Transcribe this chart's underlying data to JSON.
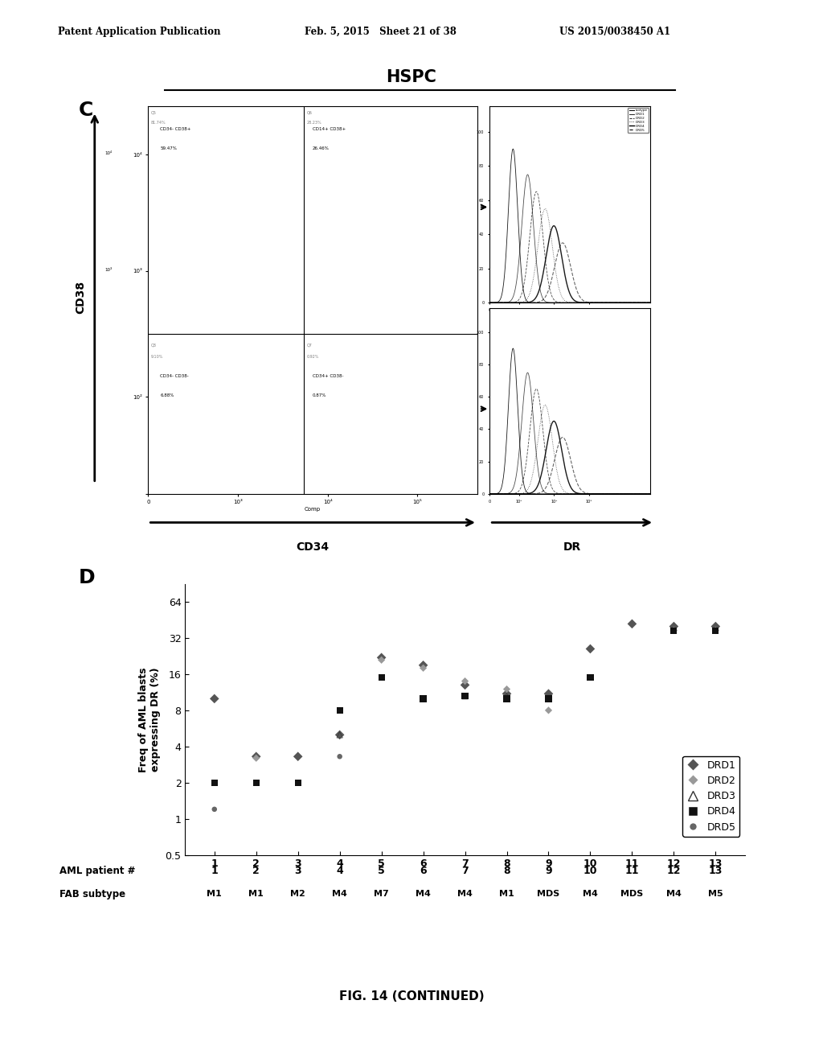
{
  "header_left": "Patent Application Publication",
  "header_mid": "Feb. 5, 2015   Sheet 21 of 38",
  "header_right": "US 2015/0038450 A1",
  "panel_C_label": "C",
  "panel_D_label": "D",
  "hspc_title": "HSPC",
  "cd34_xlabel": "CD34",
  "dr_xlabel": "DR",
  "cd38_ylabel": "CD38",
  "fig_caption": "FIG. 14 (CONTINUED)",
  "panel_d_ylabel": "Freq of AML blasts\nexpressing DR (%)",
  "aml_patients": [
    1,
    2,
    3,
    4,
    5,
    6,
    7,
    8,
    9,
    10,
    11,
    12,
    13
  ],
  "fab_subtypes": [
    "M1",
    "M1",
    "M2",
    "M4",
    "M7",
    "M4",
    "M4",
    "M1",
    "MDS",
    "M4",
    "MDS",
    "M4",
    "M5"
  ],
  "drd1_data": [
    10.0,
    3.3,
    3.3,
    5.0,
    22.0,
    19.0,
    13.0,
    11.0,
    11.0,
    26.0,
    42.0,
    40.0,
    40.0
  ],
  "drd2_data": [
    null,
    3.2,
    null,
    null,
    21.0,
    18.0,
    14.0,
    12.0,
    8.0,
    null,
    null,
    37.0,
    37.0
  ],
  "drd3_data": [
    null,
    null,
    null,
    5.0,
    null,
    null,
    10.5,
    10.5,
    null,
    null,
    null,
    null,
    null
  ],
  "drd4_data": [
    2.0,
    2.0,
    2.0,
    8.0,
    15.0,
    10.0,
    10.5,
    10.0,
    10.0,
    15.0,
    null,
    37.0,
    37.0
  ],
  "drd5_data": [
    1.2,
    null,
    null,
    3.3,
    null,
    null,
    null,
    null,
    null,
    null,
    null,
    null,
    null
  ],
  "background_color": "#ffffff"
}
